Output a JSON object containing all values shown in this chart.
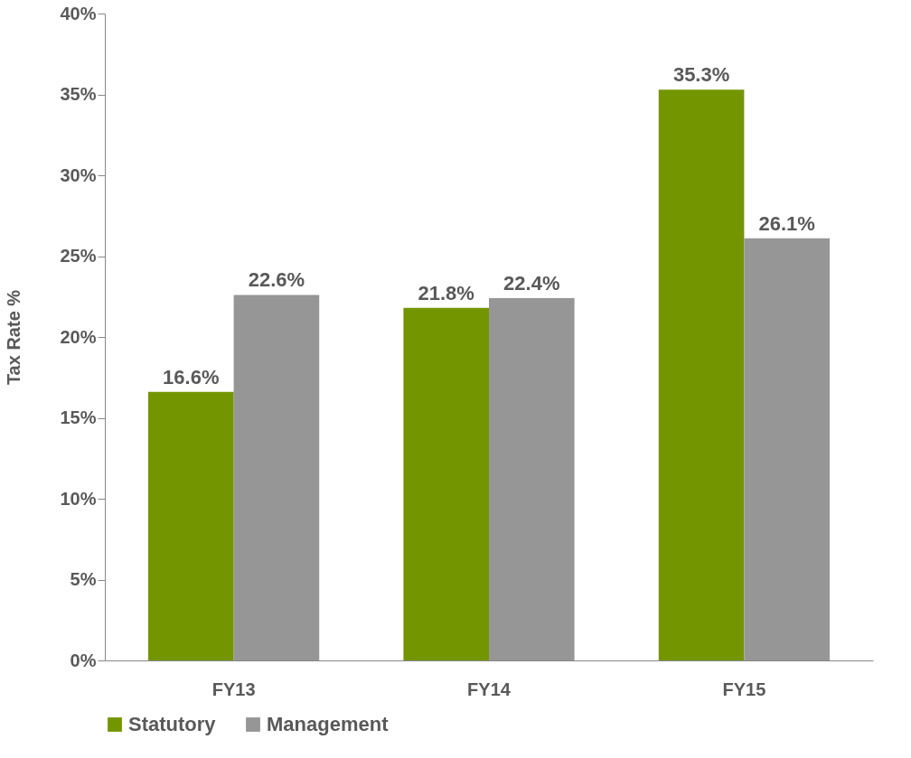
{
  "chart_data": {
    "type": "bar",
    "ylabel": "Tax Rate %",
    "categories": [
      "FY13",
      "FY14",
      "FY15"
    ],
    "series": [
      {
        "name": "Statutory",
        "color": "#739600",
        "values": [
          16.6,
          21.8,
          35.3
        ],
        "value_labels": [
          "16.6%",
          "21.8%",
          "35.3%"
        ]
      },
      {
        "name": "Management",
        "color": "#969696",
        "values": [
          22.6,
          22.4,
          26.1
        ],
        "value_labels": [
          "22.6%",
          "22.4%",
          "26.1%"
        ]
      }
    ],
    "ylim": [
      0,
      40
    ],
    "yticks": [
      {
        "value": 0,
        "label": "0%"
      },
      {
        "value": 5,
        "label": "5%"
      },
      {
        "value": 10,
        "label": "10%"
      },
      {
        "value": 15,
        "label": "15%"
      },
      {
        "value": 20,
        "label": "20%"
      },
      {
        "value": 25,
        "label": "25%"
      },
      {
        "value": 30,
        "label": "30%"
      },
      {
        "value": 35,
        "label": "35%"
      },
      {
        "value": 40,
        "label": "40%"
      }
    ],
    "grid": false,
    "legend": "bottom"
  }
}
